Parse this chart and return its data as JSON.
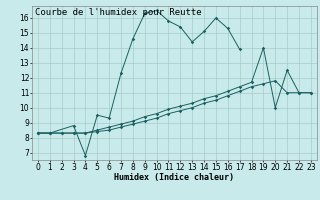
{
  "title": "Courbe de l'humidex pour Reutte",
  "xlabel": "Humidex (Indice chaleur)",
  "xlim": [
    -0.5,
    23.5
  ],
  "ylim": [
    6.5,
    16.8
  ],
  "yticks": [
    7,
    8,
    9,
    10,
    11,
    12,
    13,
    14,
    15,
    16
  ],
  "xticks": [
    0,
    1,
    2,
    3,
    4,
    5,
    6,
    7,
    8,
    9,
    10,
    11,
    12,
    13,
    14,
    15,
    16,
    17,
    18,
    19,
    20,
    21,
    22,
    23
  ],
  "bg_color": "#c8eaea",
  "grid_color": "#a8cccc",
  "line_color": "#1a6060",
  "series": [
    {
      "x": [
        0,
        1,
        3,
        4,
        5,
        6,
        7,
        8,
        9,
        10,
        11,
        12,
        13,
        14,
        15,
        16,
        17
      ],
      "y": [
        8.3,
        8.3,
        8.8,
        6.8,
        9.5,
        9.3,
        12.3,
        14.6,
        16.3,
        16.5,
        15.8,
        15.4,
        14.4,
        15.1,
        16.0,
        15.3,
        13.9
      ]
    },
    {
      "x": [
        0,
        1,
        2,
        3,
        4,
        5,
        6,
        7,
        8,
        9,
        10,
        11,
        12,
        13,
        14,
        15,
        16,
        17,
        18,
        19,
        20,
        21,
        22,
        23
      ],
      "y": [
        8.3,
        8.3,
        8.3,
        8.3,
        8.3,
        8.5,
        8.7,
        8.9,
        9.1,
        9.4,
        9.6,
        9.9,
        10.1,
        10.3,
        10.6,
        10.8,
        11.1,
        11.4,
        11.7,
        14.0,
        10.0,
        12.5,
        11.0,
        11.0
      ]
    },
    {
      "x": [
        0,
        1,
        2,
        3,
        4,
        5,
        6,
        7,
        8,
        9,
        10,
        11,
        12,
        13,
        14,
        15,
        16,
        17,
        18,
        19,
        20,
        21,
        22,
        23
      ],
      "y": [
        8.3,
        8.3,
        8.3,
        8.3,
        8.3,
        8.4,
        8.5,
        8.7,
        8.9,
        9.1,
        9.3,
        9.6,
        9.8,
        10.0,
        10.3,
        10.5,
        10.8,
        11.1,
        11.4,
        11.6,
        11.8,
        11.0,
        11.0,
        11.0
      ]
    }
  ],
  "title_fontsize": 6.5,
  "label_fontsize": 6,
  "tick_fontsize": 5.5
}
